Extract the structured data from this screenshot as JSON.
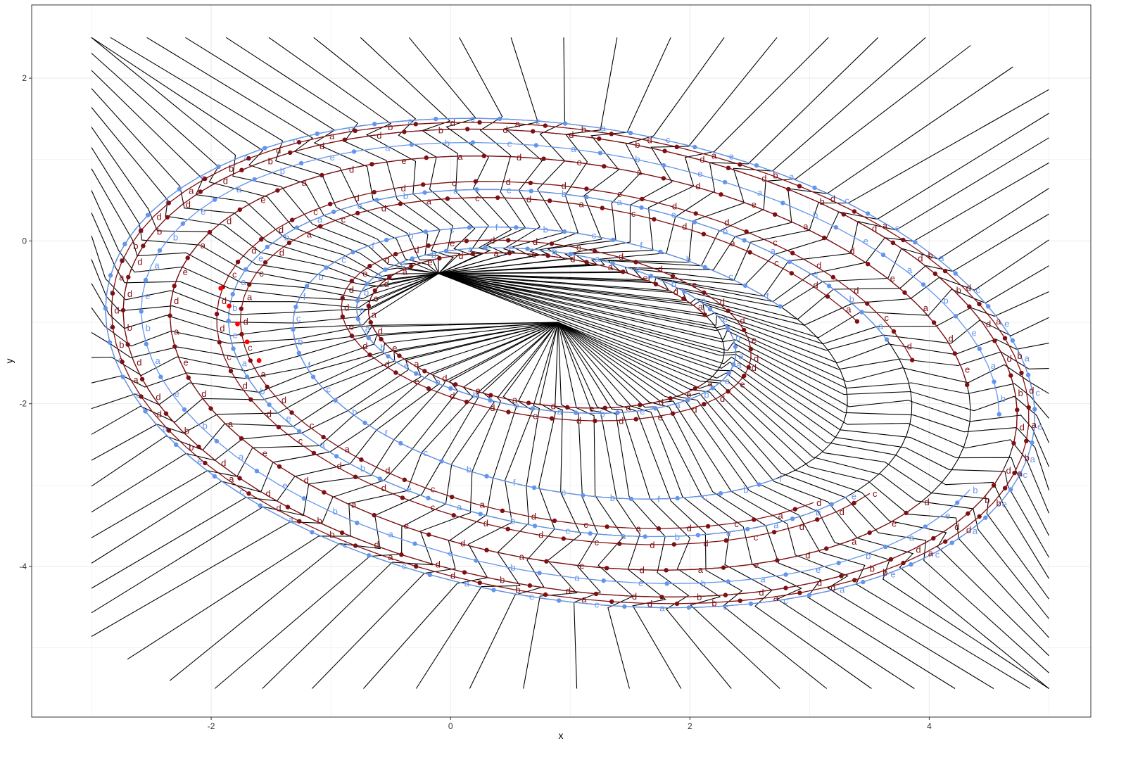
{
  "chart_data": {
    "type": "scatter",
    "title": "",
    "xlabel": "x",
    "ylabel": "y",
    "xlim": [
      -3.5,
      5.35
    ],
    "ylim": [
      -5.85,
      2.9
    ],
    "xticks": [
      -2,
      0,
      2,
      4
    ],
    "yticks": [
      2,
      0,
      -2,
      -4
    ],
    "xtick_labels": [
      "-2",
      "0",
      "2",
      "4"
    ],
    "ytick_labels": [
      "2",
      "0",
      "-2",
      "-4"
    ],
    "grid": true,
    "legend": "none",
    "point_labels": [
      "a",
      "b",
      "c",
      "d",
      "e",
      "f"
    ],
    "colors": {
      "blue": "#6495ED",
      "darkred": "#7F0F13",
      "highlight": "#FF0000",
      "voronoi": "#000000",
      "grid": "#EBEBEB",
      "panel_border": "#333333"
    },
    "voronoi_hubs": [
      {
        "x": -0.1,
        "y": -0.4
      },
      {
        "x": 0.9,
        "y": -1.0
      }
    ],
    "ellipse_series": [
      {
        "color": "blue",
        "cx": 1.0,
        "cy": -1.5,
        "a": 4.0,
        "b": 2.85,
        "angle_deg": -20,
        "t0": 0.0,
        "t1": 1.0,
        "n": 90,
        "labels": "fabeac"
      },
      {
        "color": "darkred",
        "cx": 1.0,
        "cy": -1.5,
        "a": 3.95,
        "b": 2.8,
        "angle_deg": -20,
        "t0": 0.0,
        "t1": 1.0,
        "n": 88,
        "labels": "dbeacd"
      },
      {
        "color": "darkred",
        "cx": 1.0,
        "cy": -1.5,
        "a": 3.85,
        "b": 2.72,
        "angle_deg": -20,
        "t0": 0.02,
        "t1": 1.0,
        "n": 84,
        "labels": "edcbad"
      },
      {
        "color": "blue",
        "cx": 1.0,
        "cy": -1.5,
        "a": 3.7,
        "b": 2.55,
        "angle_deg": -20,
        "t0": 0.04,
        "t1": 0.98,
        "n": 80,
        "labels": "ebcafe"
      },
      {
        "color": "darkred",
        "cx": 1.0,
        "cy": -1.5,
        "a": 3.45,
        "b": 2.4,
        "angle_deg": -20,
        "t0": 0.06,
        "t1": 0.96,
        "n": 76,
        "labels": "aecdea"
      },
      {
        "color": "darkred",
        "cx": 1.0,
        "cy": -1.5,
        "a": 3.05,
        "b": 2.1,
        "angle_deg": -20,
        "t0": 0.08,
        "t1": 0.95,
        "n": 70,
        "labels": "edaced"
      },
      {
        "color": "blue",
        "cx": 1.0,
        "cy": -1.5,
        "a": 2.95,
        "b": 2.0,
        "angle_deg": -20,
        "t0": 0.1,
        "t1": 0.94,
        "n": 66,
        "labels": "eadbce"
      },
      {
        "color": "darkred",
        "cx": 1.0,
        "cy": -1.5,
        "a": 2.85,
        "b": 1.9,
        "angle_deg": -20,
        "t0": 0.12,
        "t1": 0.92,
        "n": 64,
        "labels": "daedec"
      },
      {
        "color": "blue",
        "cx": 1.0,
        "cy": -1.5,
        "a": 2.4,
        "b": 1.55,
        "angle_deg": -20,
        "t0": 0.15,
        "t1": 0.92,
        "n": 56,
        "labels": "bfecab"
      },
      {
        "color": "darkred",
        "cx": 0.8,
        "cy": -1.1,
        "a": 1.75,
        "b": 1.05,
        "angle_deg": -15,
        "t0": 0.0,
        "t1": 1.0,
        "n": 60,
        "labels": "ddaedd"
      },
      {
        "color": "blue",
        "cx": 0.8,
        "cy": -1.1,
        "a": 1.62,
        "b": 0.96,
        "angle_deg": -15,
        "t0": 0.0,
        "t1": 1.0,
        "n": 56,
        "labels": "eadbce"
      },
      {
        "color": "darkred",
        "cx": 0.8,
        "cy": -1.1,
        "a": 1.52,
        "b": 0.9,
        "angle_deg": -15,
        "t0": 0.1,
        "t1": 0.95,
        "n": 50,
        "labels": "daedde"
      }
    ],
    "highlight_points": [
      {
        "x": -1.92,
        "y": -0.58
      },
      {
        "x": -1.85,
        "y": -0.8
      },
      {
        "x": -1.78,
        "y": -1.02
      },
      {
        "x": -1.7,
        "y": -1.24
      },
      {
        "x": -1.6,
        "y": -1.47
      }
    ]
  }
}
